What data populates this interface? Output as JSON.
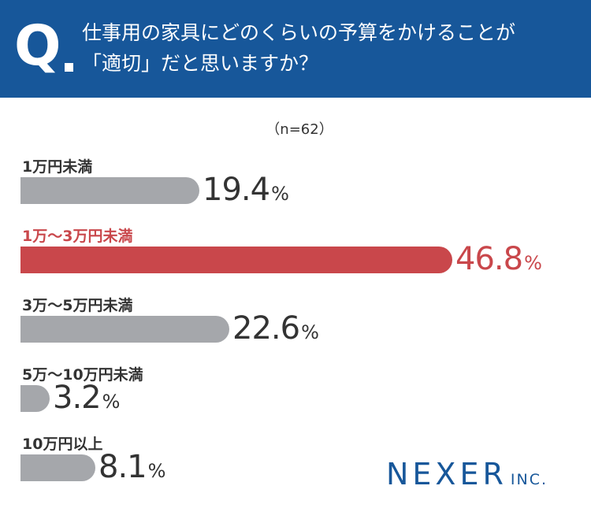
{
  "header": {
    "q_mark": "Q",
    "question_line1": "仕事用の家具にどのくらいの予算をかけることが",
    "question_line2": "「適切」だと思いますか？"
  },
  "sample_size": "（n=62）",
  "colors": {
    "header_bg": "#17579a",
    "bar_default": "#a5a7ab",
    "bar_highlight": "#c9474b",
    "label_default": "#333333",
    "label_highlight": "#c9474b",
    "logo": "#17579a"
  },
  "chart_data": {
    "type": "bar",
    "orientation": "horizontal",
    "unit": "%",
    "categories": [
      "1万円未満",
      "1万〜3万円未満",
      "3万〜5万円未満",
      "5万〜10万円未満",
      "10万円以上"
    ],
    "values": [
      19.4,
      46.8,
      22.6,
      3.2,
      8.1
    ],
    "value_labels": [
      "19.4",
      "46.8",
      "22.6",
      "3.2",
      "8.1"
    ],
    "highlight_index": 1,
    "xlim": [
      0,
      100
    ]
  },
  "logo": {
    "main": "NEXER",
    "sub": "INC."
  }
}
